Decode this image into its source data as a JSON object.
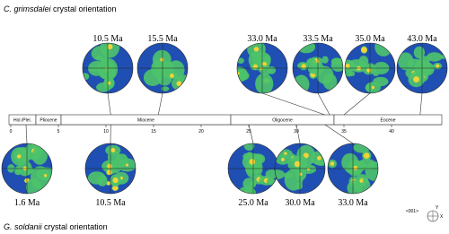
{
  "top_title": {
    "species": "C. grimsdalei",
    "text": "crystal orientation"
  },
  "bottom_title": {
    "species": "G. soldanii",
    "text": "crystal orientation"
  },
  "timeline": {
    "epochs": [
      "Hol./Plei.",
      "Pliocene",
      "Miocene",
      "Oligocene",
      "Eocene"
    ],
    "ticks": [
      0,
      5,
      10,
      15,
      20,
      25,
      30,
      35,
      40
    ]
  },
  "top_figures": [
    "10.5 Ma",
    "15.5 Ma",
    "33.0 Ma",
    "33.5 Ma",
    "35.0 Ma",
    "43.0 Ma"
  ],
  "bottom_figures": [
    "1.6 Ma",
    "10.5 Ma",
    "25.0 Ma",
    "30.0 Ma",
    "33.0 Ma"
  ],
  "legend": {
    "label": "<001>",
    "y": "Y",
    "x": "X"
  }
}
